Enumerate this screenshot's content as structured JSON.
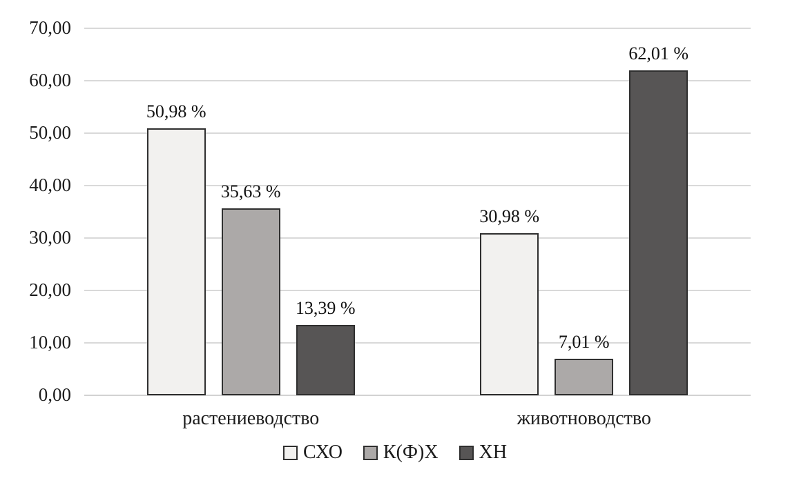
{
  "chart_data": {
    "type": "bar",
    "title": "",
    "categories": [
      "растениеводство",
      "животноводство"
    ],
    "series": [
      {
        "name": "СХО",
        "color": "#f2f1ef",
        "values": [
          50.98,
          30.98
        ],
        "labels": [
          "50,98 %",
          "30,98 %"
        ]
      },
      {
        "name": "К(Ф)Х",
        "color": "#aca9a8",
        "values": [
          35.63,
          7.01
        ],
        "labels": [
          "35,63 %",
          "7,01 %"
        ]
      },
      {
        "name": "ХН",
        "color": "#575555",
        "values": [
          13.39,
          62.01
        ],
        "labels": [
          "13,39 %",
          "62,01 %"
        ]
      }
    ],
    "ylim": [
      0,
      70
    ],
    "ytick_step": 10,
    "ytick_labels": [
      "0,00",
      "10,00",
      "20,00",
      "30,00",
      "40,00",
      "50,00",
      "60,00",
      "70,00"
    ],
    "grid": true,
    "legend_position": "bottom",
    "value_suffix": "%",
    "decimal_separator": ","
  },
  "colors": {
    "background": "#ffffff",
    "gridline": "#d9d9d9",
    "axis_line": "#d2d2d2",
    "bar_border": "#2f2f2f",
    "text": "#1c1c1c"
  }
}
